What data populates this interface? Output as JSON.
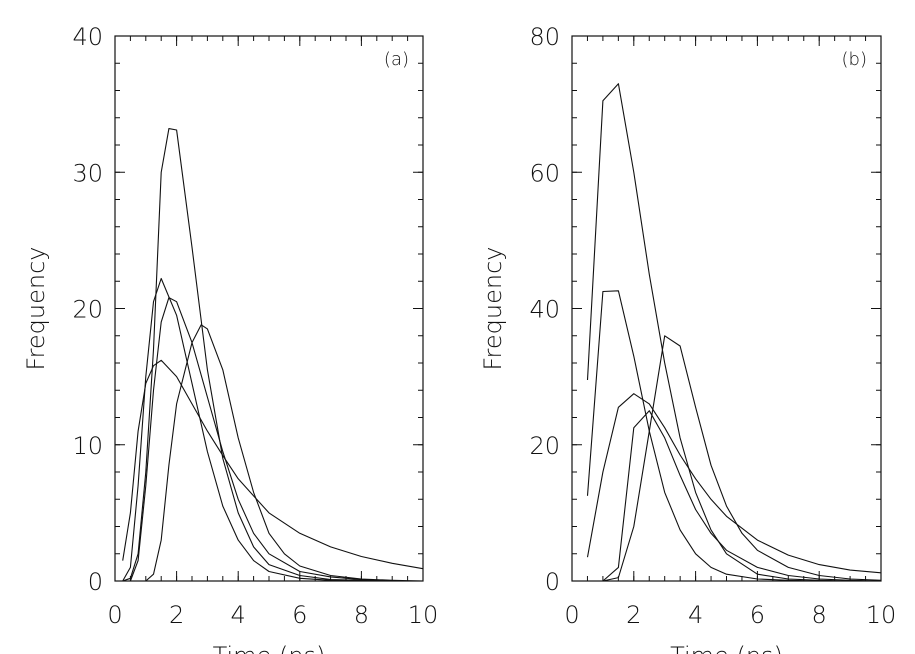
{
  "chart_data": [
    {
      "type": "line",
      "panel_label": "(a)",
      "xlabel": "Time (ns)",
      "ylabel": "Frequency",
      "xlim": [
        0,
        10
      ],
      "ylim": [
        0,
        40
      ],
      "xticks": [
        0,
        2,
        4,
        6,
        8,
        10
      ],
      "yticks": [
        0,
        10,
        20,
        30,
        40
      ],
      "xtick_labels": [
        "0",
        "2",
        "4",
        "6",
        "8",
        "10"
      ],
      "ytick_labels": [
        "0",
        "10",
        "20",
        "30",
        "40"
      ],
      "grid": false,
      "legend": "none",
      "series": [
        {
          "x": [
            0.25,
            0.5,
            0.75,
            1.0,
            1.25,
            1.5,
            1.75,
            2.0,
            2.5,
            3.0,
            3.5,
            4.0,
            4.5,
            5.0,
            6.0,
            7.0,
            8.0,
            9.0,
            10.0
          ],
          "y": [
            0,
            0.2,
            2.0,
            8.0,
            17.0,
            30.0,
            33.2,
            33.1,
            24.5,
            15.5,
            9.0,
            5.0,
            2.5,
            1.2,
            0.4,
            0.1,
            0.05,
            0.0,
            0.0
          ]
        },
        {
          "x": [
            0.25,
            0.5,
            0.75,
            1.0,
            1.25,
            1.5,
            2.0,
            2.5,
            3.0,
            3.5,
            4.0,
            4.5,
            5.0,
            6.0,
            7.0,
            8.0,
            9.0,
            10.0
          ],
          "y": [
            0,
            1.0,
            7.0,
            15.0,
            20.5,
            22.2,
            19.5,
            14.5,
            9.5,
            5.5,
            3.0,
            1.5,
            0.7,
            0.2,
            0.05,
            0.0,
            0.0,
            0.0
          ]
        },
        {
          "x": [
            0.5,
            0.75,
            1.0,
            1.25,
            1.5,
            1.75,
            2.0,
            2.5,
            3.0,
            3.5,
            4.0,
            4.5,
            5.0,
            6.0,
            7.0,
            8.0,
            9.0,
            10.0
          ],
          "y": [
            0,
            1.5,
            7.0,
            14.0,
            19.0,
            20.8,
            20.5,
            17.5,
            13.5,
            9.5,
            6.0,
            3.5,
            2.0,
            0.7,
            0.3,
            0.1,
            0.0,
            0.0
          ]
        },
        {
          "x": [
            1.0,
            1.25,
            1.5,
            1.75,
            2.0,
            2.5,
            2.8,
            3.0,
            3.5,
            4.0,
            4.5,
            5.0,
            5.5,
            6.0,
            7.0,
            8.0,
            9.0,
            10.0
          ],
          "y": [
            0,
            0.5,
            3.0,
            8.5,
            13.0,
            17.5,
            18.8,
            18.5,
            15.5,
            10.5,
            6.5,
            3.5,
            2.0,
            1.1,
            0.4,
            0.15,
            0.05,
            0.0
          ]
        },
        {
          "x": [
            0.25,
            0.5,
            0.75,
            1.0,
            1.25,
            1.5,
            2.0,
            2.5,
            3.0,
            3.5,
            4.0,
            5.0,
            6.0,
            7.0,
            8.0,
            9.0,
            10.0
          ],
          "y": [
            1.5,
            5.0,
            11.0,
            14.5,
            15.8,
            16.2,
            15.0,
            13.0,
            11.0,
            9.2,
            7.5,
            5.0,
            3.5,
            2.5,
            1.8,
            1.3,
            0.9
          ]
        }
      ]
    },
    {
      "type": "line",
      "panel_label": "(b)",
      "xlabel": "Time (ns)",
      "ylabel": "Frequency",
      "xlim": [
        0,
        10
      ],
      "ylim": [
        0,
        80
      ],
      "xticks": [
        0,
        2,
        4,
        6,
        8,
        10
      ],
      "yticks": [
        0,
        20,
        40,
        60,
        80
      ],
      "xtick_labels": [
        "0",
        "2",
        "4",
        "6",
        "8",
        "10"
      ],
      "ytick_labels": [
        "0",
        "20",
        "40",
        "60",
        "80"
      ],
      "grid": false,
      "legend": "none",
      "series": [
        {
          "x": [
            0.5,
            1.0,
            1.5,
            2.0,
            2.5,
            3.0,
            3.5,
            4.0,
            4.5,
            5.0,
            6.0,
            7.0,
            8.0,
            9.0,
            10.0
          ],
          "y": [
            29.5,
            70.5,
            73.0,
            60.0,
            45.0,
            32.0,
            21.0,
            13.0,
            7.5,
            4.0,
            1.0,
            0.3,
            0.1,
            0.0,
            0.0
          ]
        },
        {
          "x": [
            0.5,
            1.0,
            1.5,
            2.0,
            2.5,
            3.0,
            3.5,
            4.0,
            4.5,
            5.0,
            6.0,
            7.0,
            8.0,
            9.0,
            10.0
          ],
          "y": [
            12.5,
            42.5,
            42.6,
            33.0,
            22.0,
            13.0,
            7.5,
            4.0,
            2.0,
            1.0,
            0.3,
            0.1,
            0.0,
            0.0,
            0.0
          ]
        },
        {
          "x": [
            0.5,
            1.0,
            1.5,
            2.0,
            2.5,
            3.0,
            3.5,
            4.0,
            4.5,
            5.0,
            6.0,
            7.0,
            8.0,
            9.0,
            10.0
          ],
          "y": [
            3.5,
            16.0,
            25.5,
            27.5,
            26.0,
            22.5,
            18.5,
            15.0,
            12.0,
            9.5,
            6.0,
            3.8,
            2.4,
            1.6,
            1.2
          ]
        },
        {
          "x": [
            1.0,
            1.5,
            2.0,
            2.5,
            3.0,
            3.5,
            4.0,
            4.5,
            5.0,
            6.0,
            7.0,
            8.0,
            9.0,
            10.0
          ],
          "y": [
            0.0,
            2.0,
            22.5,
            25.0,
            21.0,
            15.5,
            10.5,
            7.0,
            4.5,
            2.0,
            0.8,
            0.3,
            0.1,
            0.0
          ]
        },
        {
          "x": [
            1.0,
            1.5,
            2.0,
            2.5,
            3.0,
            3.5,
            4.0,
            4.5,
            5.0,
            5.5,
            6.0,
            7.0,
            8.0,
            9.0,
            10.0
          ],
          "y": [
            0.0,
            0.5,
            8.0,
            22.0,
            36.0,
            34.5,
            25.5,
            17.0,
            11.0,
            7.0,
            4.5,
            2.0,
            0.8,
            0.3,
            0.1
          ]
        }
      ]
    }
  ]
}
